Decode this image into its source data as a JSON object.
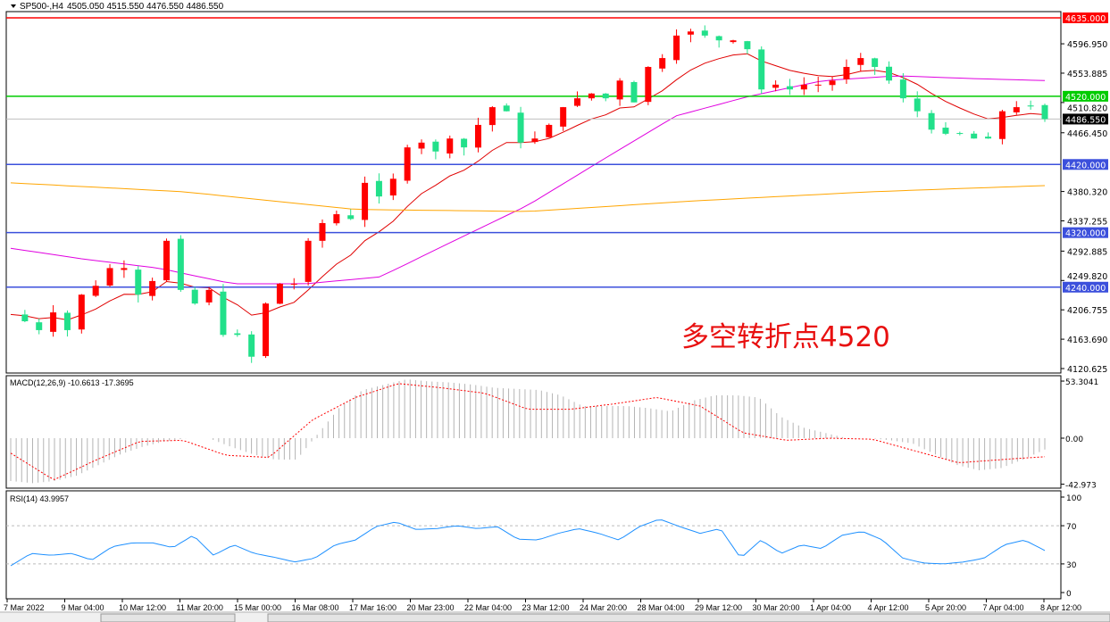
{
  "header": {
    "symbol": "SP500-,H4",
    "ohlc": "4505.050 4515.550 4476.550 4486.550"
  },
  "annotation": "多空转折点4520",
  "colors": {
    "bull": "#ff0000",
    "bear": "#22e08a",
    "ma_fast": "#e00000",
    "ma_mid": "#e000e0",
    "ma_slow": "#ffa500",
    "level_red": "#ff0000",
    "level_green": "#00cc00",
    "level_blue": "#3c50dc",
    "macd_hist": "#b4b4b4",
    "macd_signal": "#ff0000",
    "rsi": "#1e90ff"
  },
  "chart_data": [
    {
      "type": "candlestick",
      "panel": "price",
      "title": "SP500-,H4",
      "ylim": [
        4120.625,
        4635
      ],
      "y_ticks": [
        "4596.950",
        "4553.885",
        "4510.820",
        "4466.450",
        "4380.320",
        "4337.255",
        "4292.885",
        "4249.820",
        "4206.755",
        "4163.690",
        "4120.625"
      ],
      "y_tick_values": [
        4596.95,
        4553.885,
        4510.82,
        4466.45,
        4380.32,
        4337.255,
        4292.885,
        4249.82,
        4206.755,
        4163.69,
        4120.625
      ],
      "x_ticks": [
        "7 Mar 2022",
        "9 Mar 04:00",
        "10 Mar 12:00",
        "11 Mar 20:00",
        "15 Mar 00:00",
        "16 Mar 08:00",
        "17 Mar 16:00",
        "20 Mar 23:00",
        "22 Mar 04:00",
        "23 Mar 12:00",
        "24 Mar 20:00",
        "28 Mar 04:00",
        "29 Mar 12:00",
        "30 Mar 20:00",
        "1 Apr 04:00",
        "4 Apr 12:00",
        "5 Apr 20:00",
        "7 Apr 04:00",
        "8 Apr 12:00"
      ],
      "closes": [
        4200,
        4190,
        4177,
        4203,
        4177,
        4229,
        4242,
        4268,
        4268,
        4229,
        4249,
        4308,
        4236,
        4216,
        4236,
        4170,
        4170,
        4138,
        4216,
        4245,
        4245,
        4308,
        4334,
        4347,
        4340,
        4393,
        4373,
        4399,
        4445,
        4452,
        4439,
        4458,
        4445,
        4478,
        4504,
        4498,
        4452,
        4458,
        4478,
        4504,
        4517,
        4524,
        4517,
        4543,
        4511,
        4563,
        4576,
        4609,
        4615,
        4609,
        4602,
        4602,
        4589,
        4530,
        4537,
        4530,
        4537,
        4537,
        4543,
        4563,
        4576,
        4563,
        4543,
        4517,
        4498,
        4471,
        4465,
        4465,
        4458,
        4458,
        4498,
        4504,
        4505.05,
        4486.55
      ],
      "ma_mid": [
        4297,
        4281,
        4268,
        4245,
        4245,
        4255,
        4308,
        4360,
        4426,
        4491,
        4520,
        4543,
        4550,
        4546,
        4543
      ],
      "ma_slow": [
        4393,
        4380,
        4354,
        4351,
        4367,
        4380,
        4389
      ],
      "levels": [
        {
          "value": 4635,
          "label": "4635.000",
          "color": "red"
        },
        {
          "value": 4520,
          "label": "4520.000",
          "color": "green"
        },
        {
          "value": 4420,
          "label": "4420.000",
          "color": "blue"
        },
        {
          "value": 4320,
          "label": "4320.000",
          "color": "blue"
        },
        {
          "value": 4240,
          "label": "4240.000",
          "color": "blue"
        }
      ],
      "current_price": {
        "value": 4486.55,
        "label": "4486.550"
      }
    },
    {
      "type": "bar+line",
      "panel": "macd",
      "title": "MACD(12,26,9) -10.6613 -17.3695",
      "ylim": [
        -42.973,
        53.3041
      ],
      "y_ticks": [
        "53.3041",
        "0.00",
        "-42.973"
      ],
      "histogram": [
        -40,
        -42,
        -40,
        -35,
        -25,
        -15,
        -8,
        -3,
        0,
        0,
        -8,
        -15,
        -20,
        -20,
        5,
        30,
        45,
        50,
        55,
        53,
        52,
        50,
        47,
        46,
        45,
        40,
        30,
        30,
        30,
        28,
        25,
        35,
        40,
        40,
        38,
        20,
        10,
        5,
        0,
        0,
        -2,
        -5,
        -15,
        -25,
        -30,
        -28,
        -20,
        -10.66
      ],
      "signal": [
        -14,
        -39,
        -20,
        -3,
        -2,
        -16,
        -18,
        17,
        38,
        51,
        47,
        42,
        27,
        27,
        32,
        38,
        30,
        5,
        -2,
        0,
        -1,
        -12,
        -23,
        -20,
        -17.37
      ]
    },
    {
      "type": "line",
      "panel": "rsi",
      "title": "RSI(14) 43.9957",
      "ylim": [
        0,
        100
      ],
      "y_ticks": [
        "100",
        "70",
        "30",
        "0"
      ],
      "levels": [
        70,
        30
      ],
      "values": [
        28,
        41,
        39,
        41,
        34,
        48,
        52,
        52,
        47,
        60,
        39,
        50,
        41,
        37,
        32,
        36,
        50,
        55,
        69,
        74,
        66,
        67,
        70,
        67,
        69,
        56,
        55,
        62,
        67,
        62,
        55,
        69,
        77,
        69,
        62,
        67,
        36,
        55,
        41,
        50,
        46,
        60,
        64,
        55,
        36,
        31,
        30,
        32,
        36,
        50,
        55,
        44
      ]
    }
  ]
}
